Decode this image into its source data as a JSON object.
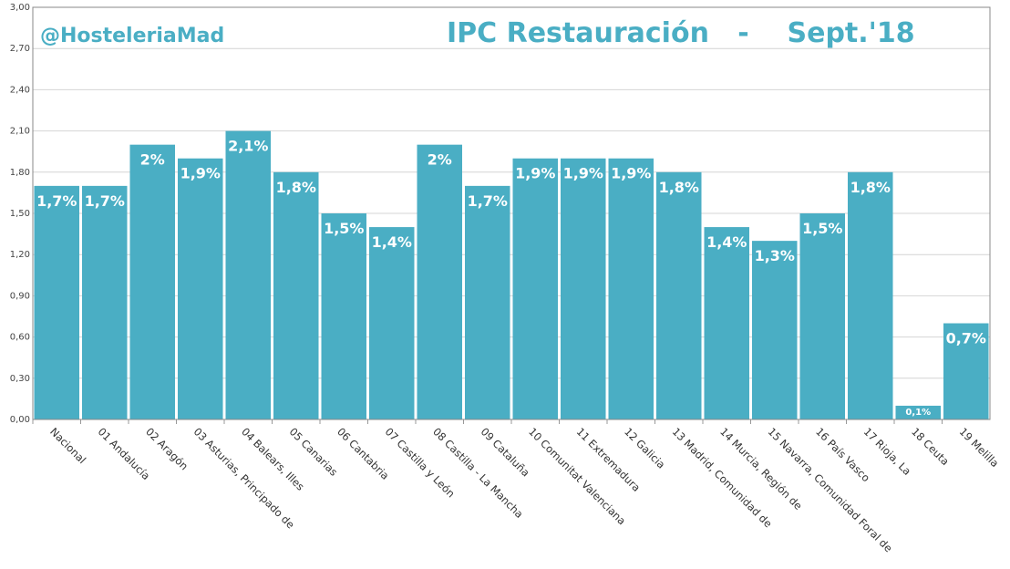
{
  "handle": "@HosteleriaMad",
  "chart_data": {
    "type": "bar",
    "title": "IPC Restauración   -    Sept.'18",
    "xlabel": "",
    "ylabel": "",
    "ylim": [
      0,
      3
    ],
    "yticks": [
      "0,00",
      "0,30",
      "0,60",
      "0,90",
      "1,20",
      "1,50",
      "1,80",
      "2,10",
      "2,40",
      "2,70",
      "3,00"
    ],
    "grid": true,
    "bar_color": "#4aaec4",
    "categories": [
      "Nacional",
      "01 Andalucía",
      "02 Aragón",
      "03 Asturias, Principado de",
      "04 Balears, Illes",
      "05 Canarias",
      "06 Cantabria",
      "07 Castilla y León",
      "08 Castilla - La Mancha",
      "09 Cataluña",
      "10 Comunitat Valenciana",
      "11 Extremadura",
      "12 Galicia",
      "13 Madrid, Comunidad de",
      "14 Murcia, Región de",
      "15 Navarra, Comunidad Foral de",
      "16 País Vasco",
      "17 Rioja, La",
      "18 Ceuta",
      "19 Melilla"
    ],
    "values": [
      1.7,
      1.7,
      2.0,
      1.9,
      2.1,
      1.8,
      1.5,
      1.4,
      2.0,
      1.7,
      1.9,
      1.9,
      1.9,
      1.8,
      1.4,
      1.3,
      1.5,
      1.8,
      0.1,
      0.7
    ],
    "data_labels": [
      "1,7%",
      "1,7%",
      "2%",
      "1,9%",
      "2,1%",
      "1,8%",
      "1,5%",
      "1,4%",
      "2%",
      "1,7%",
      "1,9%",
      "1,9%",
      "1,9%",
      "1,8%",
      "1,4%",
      "1,3%",
      "1,5%",
      "1,8%",
      "0,1%",
      "0,7%"
    ]
  }
}
